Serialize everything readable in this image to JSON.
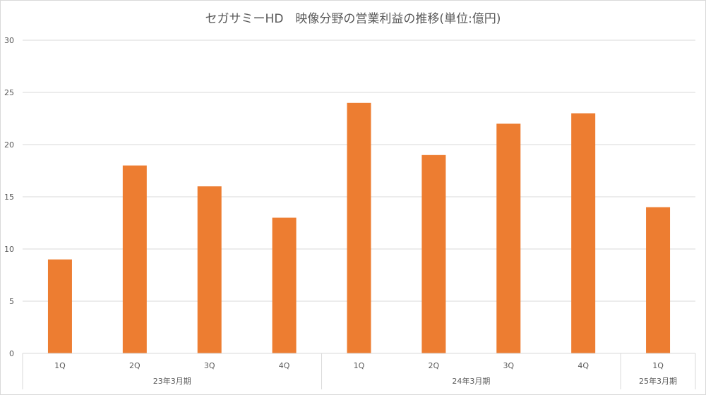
{
  "chart_data": {
    "type": "bar",
    "title": "セガサミーHD　映像分野の営業利益の推移(単位:億円)",
    "xlabel": "",
    "ylabel": "",
    "ylim": [
      0,
      30
    ],
    "yticks": [
      0,
      5,
      10,
      15,
      20,
      25,
      30
    ],
    "grid": true,
    "legend": "none",
    "bar_color": "#ED7D31",
    "groups": [
      {
        "label": "23年3月期",
        "categories": [
          "1Q",
          "2Q",
          "3Q",
          "4Q"
        ]
      },
      {
        "label": "24年3月期",
        "categories": [
          "1Q",
          "2Q",
          "3Q",
          "4Q"
        ]
      },
      {
        "label": "25年3月期",
        "categories": [
          "1Q"
        ]
      }
    ],
    "categories": [
      "1Q",
      "2Q",
      "3Q",
      "4Q",
      "1Q",
      "2Q",
      "3Q",
      "4Q",
      "1Q"
    ],
    "values": [
      9,
      18,
      16,
      13,
      24,
      19,
      22,
      23,
      14
    ]
  }
}
